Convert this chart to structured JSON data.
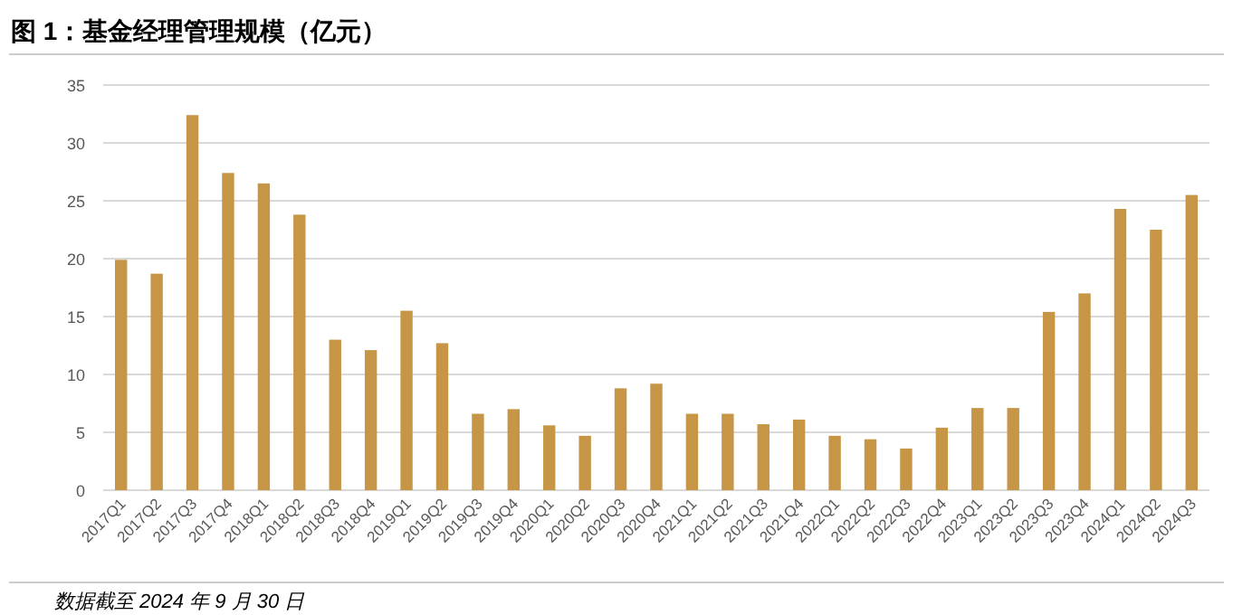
{
  "chart_data": {
    "type": "bar",
    "title": "图 1：基金经理管理规模（亿元）",
    "categories": [
      "2017Q1",
      "2017Q2",
      "2017Q3",
      "2017Q4",
      "2018Q1",
      "2018Q2",
      "2018Q3",
      "2018Q4",
      "2019Q1",
      "2019Q2",
      "2019Q3",
      "2019Q4",
      "2020Q1",
      "2020Q2",
      "2020Q3",
      "2020Q4",
      "2021Q1",
      "2021Q2",
      "2021Q3",
      "2021Q4",
      "2022Q1",
      "2022Q2",
      "2022Q3",
      "2022Q4",
      "2023Q1",
      "2023Q2",
      "2023Q3",
      "2023Q4",
      "2024Q1",
      "2024Q2",
      "2024Q3"
    ],
    "values": [
      19.9,
      18.7,
      32.4,
      27.4,
      26.5,
      23.8,
      13.0,
      12.1,
      15.5,
      12.7,
      6.6,
      7.0,
      5.6,
      4.7,
      8.8,
      9.2,
      6.6,
      6.6,
      5.7,
      6.1,
      4.7,
      4.4,
      3.6,
      5.4,
      7.1,
      7.1,
      15.4,
      17.0,
      24.3,
      22.5,
      25.5
    ],
    "color": "#c69545",
    "ylim": [
      0,
      35
    ],
    "yticks": [
      0,
      5,
      10,
      15,
      20,
      25,
      30,
      35
    ],
    "grid": "y",
    "annotations": [
      "数据截至 2024 年 9 月 30 日"
    ]
  }
}
